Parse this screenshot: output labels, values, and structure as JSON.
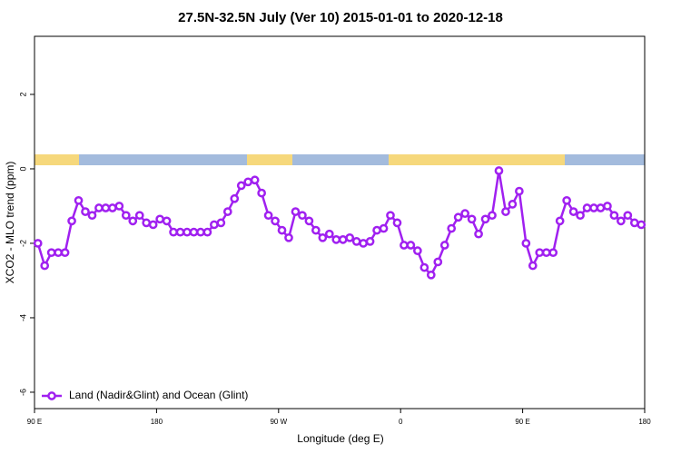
{
  "chart_data": {
    "type": "line",
    "title": "27.5N-32.5N July (Ver 10)   2015-01-01 to 2020-12-18",
    "x_label": "Longitude (deg E)",
    "y_label": "XCO2 - MLO trend (ppm)",
    "x": [
      92.5,
      97.5,
      102.5,
      107.5,
      112.5,
      117.5,
      122.5,
      127.5,
      132.5,
      137.5,
      142.5,
      147.5,
      152.5,
      157.5,
      162.5,
      167.5,
      172.5,
      177.5,
      182.5,
      187.5,
      192.5,
      197.5,
      202.5,
      207.5,
      212.5,
      217.5,
      222.5,
      227.5,
      232.5,
      237.5,
      242.5,
      247.5,
      252.5,
      257.5,
      262.5,
      267.5,
      272.5,
      277.5,
      282.5,
      287.5,
      292.5,
      297.5,
      302.5,
      307.5,
      312.5,
      317.5,
      322.5,
      327.5,
      332.5,
      337.5,
      342.5,
      347.5,
      352.5,
      357.5,
      362.5,
      367.5,
      372.5,
      377.5,
      382.5,
      387.5,
      392.5,
      397.5,
      402.5,
      407.5,
      412.5,
      417.5,
      422.5,
      427.5,
      432.5,
      437.5,
      442.5,
      447.5,
      452.5,
      457.5,
      462.5,
      467.5,
      472.5,
      477.5,
      482.5,
      487.5,
      492.5,
      497.5,
      502.5,
      507.5,
      512.5,
      517.5,
      522.5,
      527.5,
      532.5,
      537.5
    ],
    "series": [
      {
        "name": "Land (Nadir&Glint) and Ocean (Glint)",
        "color": "#a020f0",
        "values": [
          -2.0,
          -2.6,
          -2.25,
          -2.25,
          -2.25,
          -1.4,
          -0.85,
          -1.15,
          -1.25,
          -1.05,
          -1.05,
          -1.05,
          -1.0,
          -1.25,
          -1.4,
          -1.25,
          -1.45,
          -1.5,
          -1.35,
          -1.4,
          -1.7,
          -1.7,
          -1.7,
          -1.7,
          -1.7,
          -1.7,
          -1.5,
          -1.45,
          -1.15,
          -0.8,
          -0.45,
          -0.35,
          -0.3,
          -0.65,
          -1.25,
          -1.4,
          -1.65,
          -1.85,
          -1.15,
          -1.25,
          -1.4,
          -1.65,
          -1.85,
          -1.75,
          -1.9,
          -1.9,
          -1.85,
          -1.95,
          -2.0,
          -1.95,
          -1.65,
          -1.6,
          -1.25,
          -1.45,
          -2.05,
          -2.05,
          -2.2,
          -2.65,
          -2.85,
          -2.5,
          -2.05,
          -1.6,
          -1.3,
          -1.2,
          -1.35,
          -1.75,
          -1.35,
          -1.25,
          -0.05,
          -1.15,
          -0.95,
          -0.6,
          -2.0,
          -2.6,
          -2.25,
          -2.25,
          -2.25,
          -1.4,
          -0.85,
          -1.15,
          -1.25,
          -1.05,
          -1.05,
          -1.05,
          -1.0,
          -1.25,
          -1.4,
          -1.25,
          -1.45,
          -1.5
        ]
      }
    ],
    "xlim": [
      90,
      540
    ],
    "xticks": [
      {
        "value": 90,
        "label": "90 E"
      },
      180,
      {
        "value": 270,
        "label": "90 W"
      },
      {
        "value": 360,
        "label": "0"
      },
      {
        "value": 450,
        "label": "90 E"
      },
      {
        "value": 540,
        "label": "180"
      }
    ],
    "ylim": [
      -6.44,
      3.56
    ],
    "yticks": [
      2,
      0,
      -2,
      -4,
      -6
    ],
    "legend": "bottom-left"
  }
}
